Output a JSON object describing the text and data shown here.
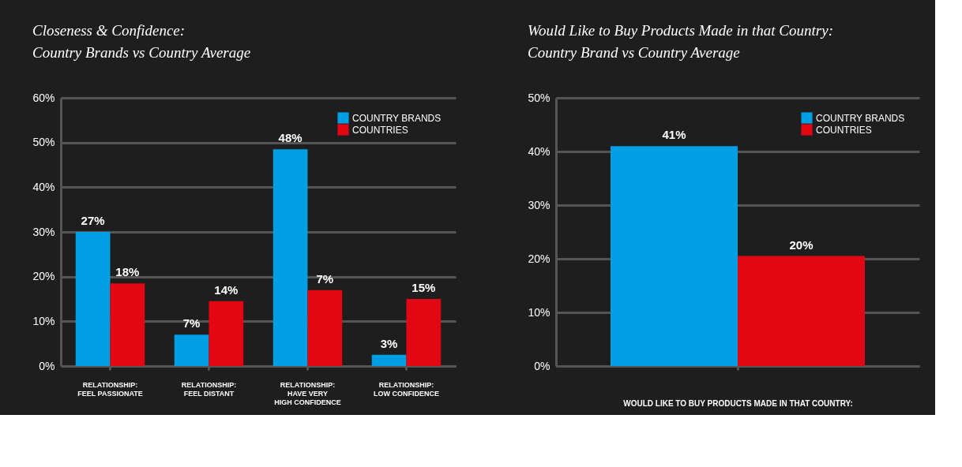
{
  "chart_data": [
    {
      "type": "bar",
      "title": "Closeness & Confidence:\nCountry Brands vs Country Average",
      "categories": [
        "RELATIONSHIP:\nFEEL PASSIONATE",
        "RELATIONSHIP:\nFEEL DISTANT",
        "RELATIONSHIP:\nHAVE VERY\nHIGH CONFIDENCE",
        "RELATIONSHIP:\nLOW CONFIDENCE"
      ],
      "series": [
        {
          "name": "COUNTRY BRANDS",
          "color": "#009fe3",
          "values": [
            30,
            7,
            48.5,
            2.5
          ],
          "value_labels": [
            null,
            "7%",
            "48%",
            "3%"
          ]
        },
        {
          "name": "COUNTRIES",
          "color": "#e30613",
          "values": [
            18.5,
            14.5,
            17,
            15
          ],
          "value_labels": [
            "18%",
            "14%",
            null,
            "15%"
          ]
        }
      ],
      "annotations": [
        {
          "text": "27%",
          "x": "RELATIONSHIP:\nFEEL PASSIONATE",
          "y": 30
        },
        {
          "text": "7%",
          "x": "RELATIONSHIP:\nHAVE VERY\nHIGH CONFIDENCE",
          "y": 17
        }
      ],
      "ylim": [
        0,
        60
      ],
      "yticks": [
        {
          "value": 0,
          "label": "0%"
        },
        {
          "value": 10,
          "label": "10%"
        },
        {
          "value": 20,
          "label": "20%"
        },
        {
          "value": 30,
          "label": "30%"
        },
        {
          "value": 40,
          "label": "40%"
        },
        {
          "value": 50,
          "label": "50%"
        },
        {
          "value": 60,
          "label": "60%"
        }
      ],
      "grid": "y",
      "legend": "top right"
    },
    {
      "type": "bar",
      "title": "Would Like to Buy Products Made in that Country:\nCountry Brand vs Country Average",
      "categories": [
        null
      ],
      "xlabel": "WOULD LIKE TO BUY PRODUCTS MADE IN THAT COUNTRY:",
      "series": [
        {
          "name": "COUNTRY BRANDS",
          "color": "#009fe3",
          "values": [
            41
          ],
          "value_labels": [
            "41%"
          ]
        },
        {
          "name": "COUNTRIES",
          "color": "#e30613",
          "values": [
            20.5
          ],
          "value_labels": [
            "20%"
          ]
        }
      ],
      "ylim": [
        0,
        50
      ],
      "yticks": [
        {
          "value": 0,
          "label": "0%"
        },
        {
          "value": 10,
          "label": "10%"
        },
        {
          "value": 20,
          "label": "20%"
        },
        {
          "value": 30,
          "label": "30%"
        },
        {
          "value": 40,
          "label": "40%"
        },
        {
          "value": 50,
          "label": "50%"
        }
      ],
      "grid": "y",
      "legend": "top right"
    }
  ]
}
